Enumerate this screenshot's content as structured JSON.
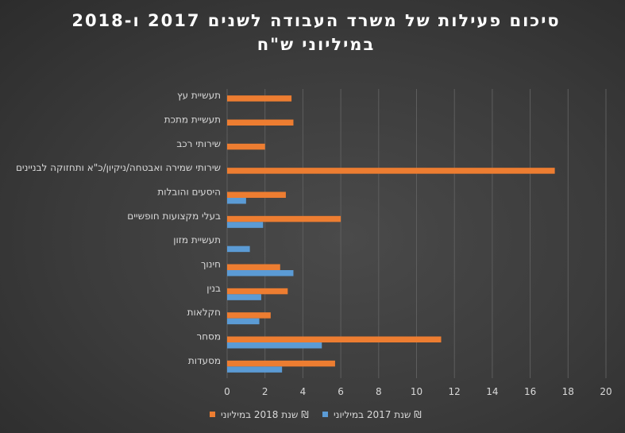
{
  "chart_data": {
    "type": "bar",
    "orientation": "horizontal",
    "title_lines": [
      "סיכום פעילות של משרד העבודה לשנים 2017 ו-2018",
      "במיליוני ש\"ח"
    ],
    "categories": [
      "תעשיית עץ",
      "תעשיית מתכת",
      "שירותי רכב",
      "שירותי שמירה ואבטחה/ניקיון/כ\"א ותחזוקה לבניינים",
      "היסעים והובלות",
      "בעלי מקצועות חופשיים",
      "תעשיית מזון",
      "חינוך",
      "בנין",
      "חקלאות",
      "מסחר",
      "מסעדות"
    ],
    "series": [
      {
        "name": "שנת 2018 במיליוני ₪",
        "color": "#ed7d31",
        "values": [
          3.4,
          3.5,
          2.0,
          17.3,
          3.1,
          6.0,
          null,
          2.8,
          3.2,
          2.3,
          11.3,
          5.7
        ]
      },
      {
        "name": "שנת 2017 במיליוני ₪",
        "color": "#5b9bd5",
        "values": [
          null,
          null,
          null,
          null,
          1.0,
          1.9,
          1.2,
          3.5,
          1.8,
          1.7,
          5.0,
          2.9
        ]
      }
    ],
    "x_ticks": [
      0,
      2,
      4,
      6,
      8,
      10,
      12,
      14,
      16,
      18,
      20
    ],
    "xlim": [
      0,
      20
    ],
    "grid": true,
    "legend_position": "bottom"
  }
}
